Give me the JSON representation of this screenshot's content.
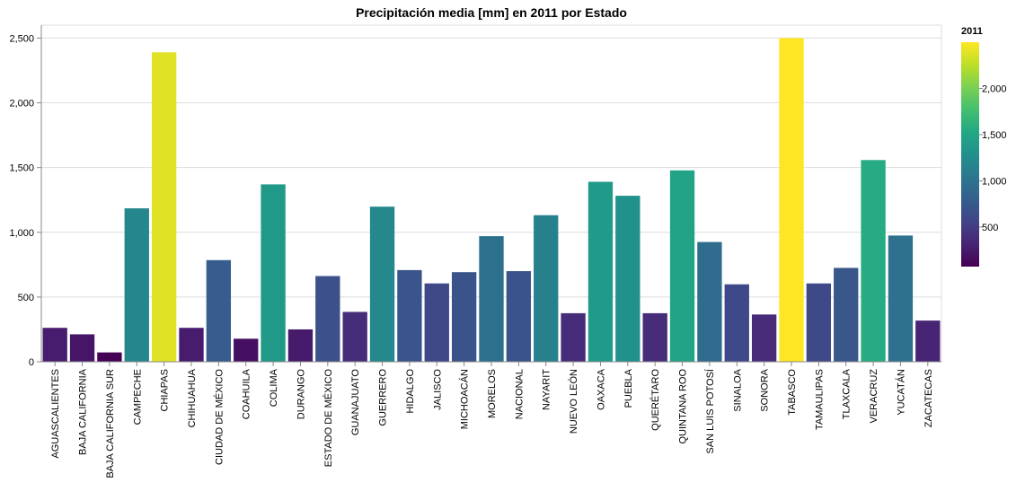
{
  "chart_data": {
    "type": "bar",
    "title": "Precipitación media [mm] en 2011 por Estado",
    "xlabel": "",
    "ylabel": "",
    "ylim": [
      0,
      2600
    ],
    "yticks": [
      0,
      500,
      1000,
      1500,
      2000,
      2500
    ],
    "ytick_labels": [
      "0",
      "500",
      "1,000",
      "1,500",
      "2,000",
      "2,500"
    ],
    "grid": true,
    "categories": [
      "AGUASCALIENTES",
      "BAJA CALIFORNIA",
      "BAJA CALIFORNIA SUR",
      "CAMPECHE",
      "CHIAPAS",
      "CHIHUAHUA",
      "CIUDAD DE MÉXICO",
      "COAHUILA",
      "COLIMA",
      "DURANGO",
      "ESTADO DE MÉXICO",
      "GUANAJUATO",
      "GUERRERO",
      "HIDALGO",
      "JALISCO",
      "MICHOACÁN",
      "MORELOS",
      "NACIONAL",
      "NAYARIT",
      "NUEVO LEÓN",
      "OAXACA",
      "PUEBLA",
      "QUERÉTARO",
      "QUINTANA ROO",
      "SAN LUIS POTOSÍ",
      "SINALOA",
      "SONORA",
      "TABASCO",
      "TAMAULIPAS",
      "TLAXCALA",
      "VERACRUZ",
      "YUCATÁN",
      "ZACATECAS"
    ],
    "values": [
      262,
      212,
      72,
      1185,
      2390,
      262,
      785,
      178,
      1370,
      250,
      662,
      385,
      1198,
      708,
      605,
      692,
      970,
      700,
      1132,
      375,
      1390,
      1282,
      375,
      1478,
      925,
      598,
      365,
      2500,
      605,
      725,
      1558,
      975,
      318
    ],
    "legend": {
      "title": "2011",
      "placement": "right",
      "domain": [
        72,
        2500
      ],
      "ticks": [
        500,
        1000,
        1500,
        2000
      ],
      "tick_labels": [
        "500",
        "1,000",
        "1,500",
        "2,000"
      ],
      "colormap": "viridis"
    }
  }
}
